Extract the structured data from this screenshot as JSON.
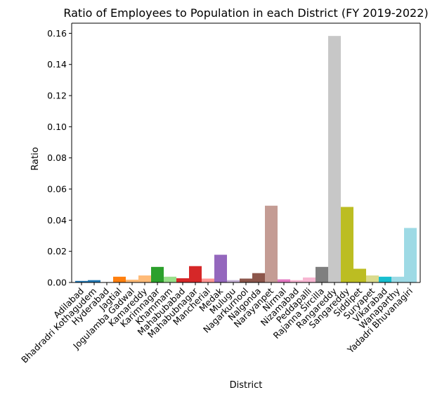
{
  "chart_data": {
    "type": "bar",
    "title": "Ratio of Employees to Population in each District (FY 2019-2022)",
    "xlabel": "District",
    "ylabel": "Ratio",
    "ylim": [
      0,
      0.1665
    ],
    "yticks": [
      0.0,
      0.02,
      0.04,
      0.06,
      0.08,
      0.1,
      0.12,
      0.14,
      0.16
    ],
    "ytick_labels": [
      "0.00",
      "0.02",
      "0.04",
      "0.06",
      "0.08",
      "0.10",
      "0.12",
      "0.14",
      "0.16"
    ],
    "grid": false,
    "legend": "none",
    "categories": [
      "Adilabad",
      "Bhadradri Kothagudem",
      "Hyderabad",
      "Jagtial",
      "Jogulamba Gadwal",
      "Kamareddy",
      "Karimnagar",
      "Khammam",
      "Mahabubabad",
      "Mahabubnagar",
      "Mancherial",
      "Medak",
      "Mulugu",
      "Nagarkurnool",
      "Nalgonda",
      "Narayanpet",
      "Nirmal",
      "Nizamabad",
      "Peddapalli",
      "Rajanna Sircilla",
      "Rangareddy",
      "Sangareddy",
      "Siddipet",
      "Suryapet",
      "Vikarabad",
      "Wanaparthy",
      "Yadadri Bhuvanagiri"
    ],
    "values": [
      0.001,
      0.0015,
      0.0,
      0.0037,
      0.0018,
      0.0045,
      0.01,
      0.0037,
      0.0027,
      0.0105,
      0.0025,
      0.0178,
      0.0015,
      0.0025,
      0.006,
      0.0493,
      0.002,
      0.0015,
      0.0032,
      0.01,
      0.1583,
      0.0485,
      0.0088,
      0.0045,
      0.0037,
      0.0037,
      0.035
    ],
    "colors": [
      "#1f77b4",
      "#1f77b4",
      "#aec7e8",
      "#ff7f0e",
      "#ffbb78",
      "#ffbb78",
      "#2ca02c",
      "#98df8a",
      "#d62728",
      "#d62728",
      "#ff9896",
      "#9467bd",
      "#c5b0d5",
      "#8c564b",
      "#8c564b",
      "#c49c94",
      "#e377c2",
      "#f7b6d2",
      "#f7b6d2",
      "#7f7f7f",
      "#c7c7c7",
      "#bcbd22",
      "#bcbd22",
      "#dbdb8d",
      "#17becf",
      "#9edae5",
      "#9edae5"
    ]
  }
}
